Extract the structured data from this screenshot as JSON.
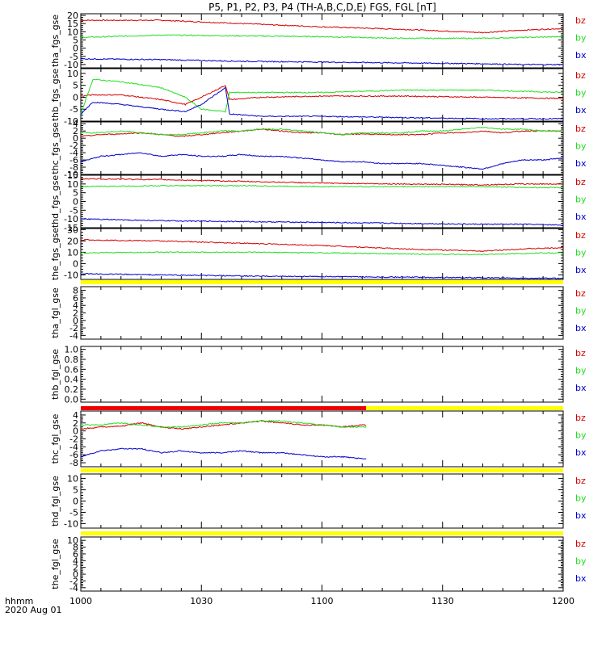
{
  "title": "P5, P1, P2, P3, P4 (TH-A,B,C,D,E) FGS, FGL [nT]",
  "colors": {
    "bz": "#d40000",
    "by": "#22dd22",
    "bx": "#0000cc",
    "status_yellow": "#ffff00",
    "status_red": "#ee0000",
    "axis": "#000000"
  },
  "time_axis": {
    "tick_labels": [
      "1000",
      "1030",
      "1100",
      "1130",
      "1200"
    ],
    "label": "hhmm",
    "date": "2020 Aug 01"
  },
  "chart_data": [
    {
      "type": "line",
      "ylabel": "tha_fgs_gse",
      "yticks": [
        "-10",
        "-5",
        "0",
        "5",
        "10",
        "15",
        "20"
      ],
      "ylim": [
        -12,
        21
      ],
      "x_minutes": [
        0,
        20,
        40,
        60,
        80,
        100,
        110,
        120
      ],
      "series": [
        {
          "name": "bz",
          "values": [
            17,
            17,
            15,
            13,
            11.5,
            9.5,
            11,
            12
          ]
        },
        {
          "name": "by",
          "values": [
            6.5,
            8,
            7.5,
            7,
            6,
            6,
            6.5,
            7
          ]
        },
        {
          "name": "bx",
          "values": [
            -6.5,
            -7,
            -8,
            -8.5,
            -9,
            -9.5,
            -10,
            -10
          ]
        }
      ]
    },
    {
      "type": "line",
      "ylabel": "thb_fgs_gse",
      "yticks": [
        "-10",
        "-5",
        "0",
        "5",
        "10"
      ],
      "ylim": [
        -10,
        12
      ],
      "x_minutes": [
        0,
        3,
        10,
        20,
        26,
        30,
        36,
        37,
        45,
        60,
        80,
        100,
        120
      ],
      "series": [
        {
          "name": "bz",
          "values": [
            0.5,
            1,
            1,
            -1,
            -3,
            0,
            5,
            -1,
            0,
            0.5,
            0.5,
            0,
            -0.5
          ]
        },
        {
          "name": "by",
          "values": [
            -7,
            7.5,
            6.5,
            4,
            0,
            -5,
            -6,
            2,
            2,
            2,
            3,
            3,
            2
          ]
        },
        {
          "name": "bx",
          "values": [
            -7,
            -2,
            -3,
            -5,
            -6,
            -3,
            4,
            -7,
            -8,
            -8,
            -8.5,
            -9,
            -9
          ]
        }
      ]
    },
    {
      "type": "line",
      "ylabel": "thc_fgs_gse",
      "yticks": [
        "-10",
        "-8",
        "-6",
        "-4",
        "-2",
        "0",
        "2",
        "4"
      ],
      "ylim": [
        -10,
        4.5
      ],
      "x_minutes": [
        0,
        5,
        10,
        15,
        20,
        25,
        30,
        35,
        40,
        45,
        50,
        55,
        60,
        65,
        70,
        75,
        80,
        85,
        90,
        95,
        100,
        105,
        110,
        115,
        120
      ],
      "series": [
        {
          "name": "bz",
          "values": [
            0.5,
            1,
            1.2,
            1.5,
            1,
            0.5,
            1,
            1.5,
            2,
            2.5,
            2,
            1.5,
            1.5,
            1,
            1.2,
            1,
            1,
            1,
            1.5,
            1.5,
            2,
            1.5,
            2,
            2,
            2
          ]
        },
        {
          "name": "by",
          "values": [
            1.5,
            1.5,
            2,
            1.5,
            1,
            1,
            1.5,
            2,
            2,
            2.5,
            2.5,
            2,
            1.5,
            1,
            1.5,
            1.5,
            1.5,
            2,
            2,
            2.5,
            3,
            2.5,
            2.5,
            2,
            2
          ]
        },
        {
          "name": "bx",
          "values": [
            -6.5,
            -5,
            -4.5,
            -4,
            -5,
            -4.5,
            -5,
            -5,
            -4.5,
            -5,
            -5,
            -5.5,
            -6,
            -6.5,
            -6.5,
            -7,
            -7,
            -7,
            -7.5,
            -8,
            -8.5,
            -7,
            -6,
            -6,
            -5.5
          ]
        }
      ]
    },
    {
      "type": "line",
      "ylabel": "thd_fgs_gse",
      "yticks": [
        "-15",
        "-10",
        "-5",
        "0",
        "5",
        "10",
        "15"
      ],
      "ylim": [
        -15,
        15
      ],
      "x_minutes": [
        0,
        20,
        40,
        60,
        80,
        100,
        110,
        120
      ],
      "series": [
        {
          "name": "bz",
          "values": [
            13,
            12.5,
            11.5,
            10.5,
            10,
            9.5,
            10,
            10
          ]
        },
        {
          "name": "by",
          "values": [
            8.5,
            9,
            9,
            8.5,
            8.5,
            8.5,
            8,
            8
          ]
        },
        {
          "name": "bx",
          "values": [
            -10,
            -11,
            -11.5,
            -12,
            -12.5,
            -13,
            -13,
            -13.5
          ]
        }
      ]
    },
    {
      "type": "line",
      "ylabel": "the_fgs_gse",
      "yticks": [
        "-10",
        "0",
        "10",
        "20",
        "30"
      ],
      "ylim": [
        -14,
        31
      ],
      "x_minutes": [
        0,
        20,
        40,
        60,
        80,
        100,
        110,
        120
      ],
      "series": [
        {
          "name": "bz",
          "values": [
            21,
            20,
            18,
            16,
            13,
            11,
            13,
            14
          ]
        },
        {
          "name": "by",
          "values": [
            9.5,
            10,
            10,
            9.5,
            8.5,
            8,
            9,
            9.5
          ]
        },
        {
          "name": "bx",
          "values": [
            -9,
            -10,
            -11,
            -11.5,
            -12,
            -12.5,
            -13,
            -13
          ]
        }
      ]
    },
    {
      "type": "line",
      "ylabel": "tha_fgl_gse",
      "yticks": [
        "-4",
        "-2",
        "0",
        "2",
        "4",
        "6",
        "8"
      ],
      "ylim": [
        -5,
        9
      ],
      "x_minutes": [],
      "series": [
        {
          "name": "bz",
          "values": []
        },
        {
          "name": "by",
          "values": []
        },
        {
          "name": "bx",
          "values": []
        }
      ]
    },
    {
      "type": "line",
      "ylabel": "thb_fgl_gse",
      "yticks": [
        "0.0",
        "0.2",
        "0.4",
        "0.6",
        "0.8",
        "1.0"
      ],
      "ylim": [
        -0.06,
        1.06
      ],
      "x_minutes": [],
      "series": []
    },
    {
      "type": "line",
      "ylabel": "thc_fgl_gse",
      "yticks": [
        "-8",
        "-6",
        "-4",
        "-2",
        "0",
        "2",
        "4"
      ],
      "ylim": [
        -9,
        5
      ],
      "x_minutes": [
        0,
        5,
        10,
        15,
        20,
        25,
        30,
        35,
        40,
        45,
        50,
        55,
        60,
        65,
        70,
        71
      ],
      "series": [
        {
          "name": "bz",
          "values": [
            0.5,
            1,
            1.2,
            2,
            1,
            0.5,
            1,
            1.5,
            2,
            2.5,
            2,
            1.5,
            1.5,
            1,
            1.5,
            1.5
          ]
        },
        {
          "name": "by",
          "values": [
            1.5,
            1.5,
            2,
            1.5,
            1,
            1,
            1.5,
            2,
            2,
            2.5,
            2.5,
            2,
            1.5,
            1,
            1,
            1
          ]
        },
        {
          "name": "bx",
          "values": [
            -6.5,
            -5,
            -4.5,
            -4.5,
            -5.5,
            -5,
            -5.5,
            -5.5,
            -5,
            -5.5,
            -5.5,
            -6,
            -6.5,
            -6.5,
            -7,
            -7
          ]
        }
      ]
    },
    {
      "type": "line",
      "ylabel": "thd_fgl_gse",
      "yticks": [
        "-10",
        "-5",
        "0",
        "5",
        "10"
      ],
      "ylim": [
        -12,
        12
      ],
      "x_minutes": [],
      "series": [
        {
          "name": "bz",
          "values": []
        },
        {
          "name": "by",
          "values": []
        },
        {
          "name": "bx",
          "values": []
        }
      ]
    },
    {
      "type": "line",
      "ylabel": "the_fgl_gse",
      "yticks": [
        "-4",
        "-2",
        "0",
        "2",
        "4",
        "6",
        "8",
        "10"
      ],
      "ylim": [
        -5,
        11
      ],
      "x_minutes": [],
      "series": [
        {
          "name": "bz",
          "values": []
        },
        {
          "name": "by",
          "values": []
        },
        {
          "name": "bx",
          "values": []
        }
      ]
    }
  ],
  "status_bars": [
    {
      "after_panel": 4,
      "segments": [
        {
          "x_minutes": [
            0,
            120
          ],
          "color": "yellow"
        }
      ]
    },
    {
      "after_panel": 6,
      "segments": [
        {
          "x_minutes": [
            0,
            71
          ],
          "color": "red"
        },
        {
          "x_minutes": [
            71,
            120
          ],
          "color": "yellow"
        }
      ]
    },
    {
      "after_panel": 7,
      "segments": [
        {
          "x_minutes": [
            0,
            120
          ],
          "color": "yellow"
        }
      ]
    },
    {
      "after_panel": 8,
      "segments": [
        {
          "x_minutes": [
            0,
            120
          ],
          "color": "yellow"
        }
      ]
    }
  ]
}
